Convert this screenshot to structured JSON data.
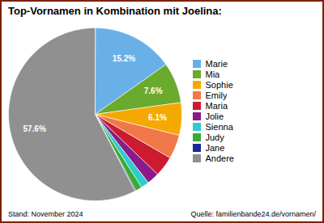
{
  "chart_data": {
    "type": "pie",
    "title": "Top-Vornamen in Kombination mit Joelina:",
    "categories": [
      "Marie",
      "Mia",
      "Sophie",
      "Emily",
      "Maria",
      "Jolie",
      "Sienna",
      "Judy",
      "Jane",
      "Andere"
    ],
    "values": [
      15.2,
      7.6,
      6.1,
      4.5,
      3.8,
      2.3,
      1.5,
      1.2,
      0.2,
      57.6
    ],
    "colors": [
      "#6ab0e8",
      "#6aaa2e",
      "#f5a800",
      "#f07848",
      "#cc1a30",
      "#8b1a8b",
      "#2ecccc",
      "#3aaa35",
      "#1a2899",
      "#909090"
    ],
    "data_labels": true,
    "value_labels": [
      "15.2%",
      "7.6%",
      "6.1%",
      null,
      null,
      null,
      null,
      null,
      null,
      "57.6%"
    ],
    "legend": "right",
    "annotations": [
      "Stand: November 2024",
      "Quelle: familienbande24.de/vornamen/"
    ]
  }
}
